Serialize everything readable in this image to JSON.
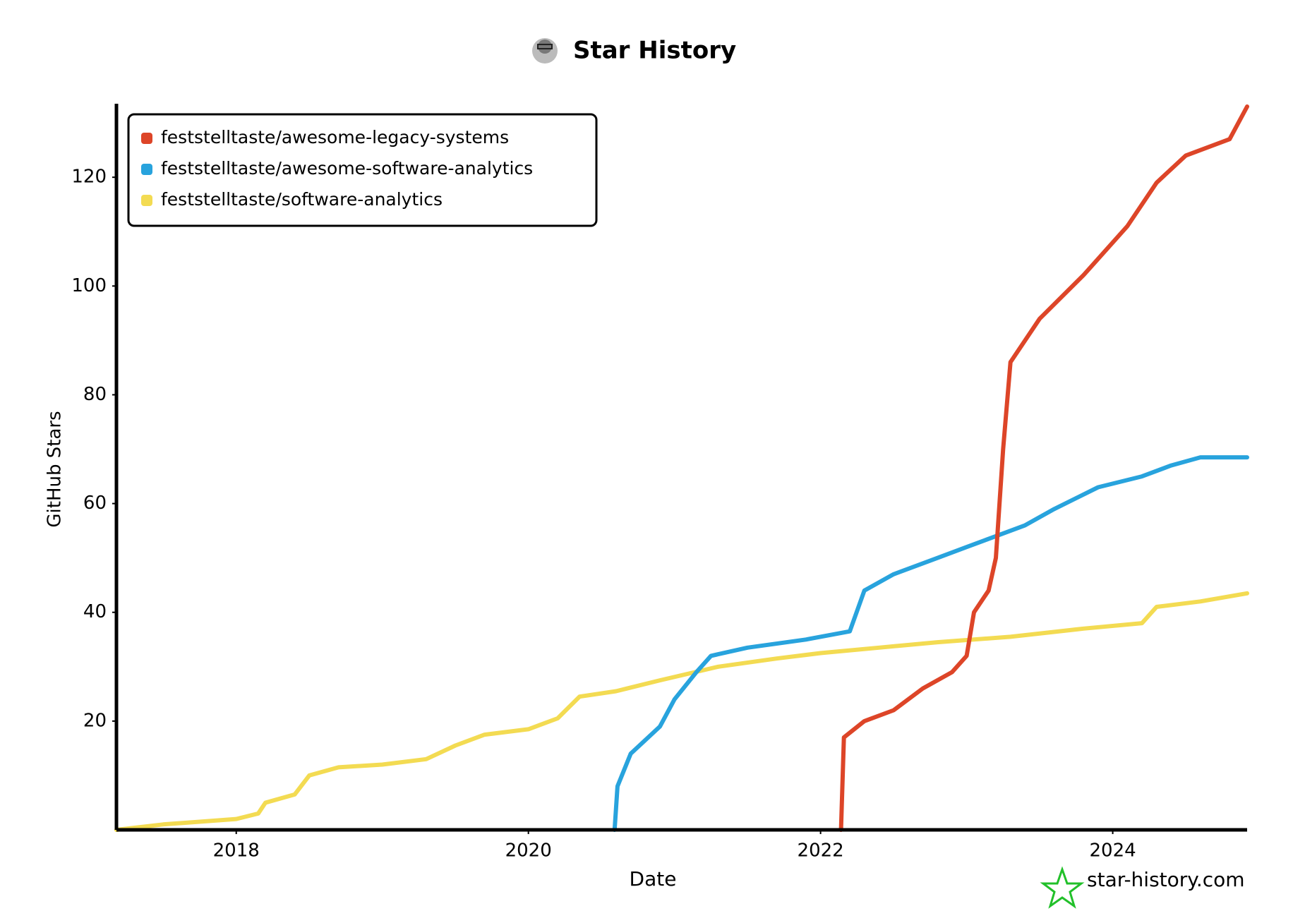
{
  "chart_data": {
    "type": "line",
    "title": "Star History",
    "x_label": "Date",
    "y_label": "GitHub Stars",
    "watermark": "star-history.com",
    "legend": "upper left",
    "xlim": [
      2017.18,
      2024.92
    ],
    "xticks": [
      2018,
      2020,
      2022,
      2024
    ],
    "ylim": [
      0,
      133
    ],
    "yticks": [
      20,
      40,
      60,
      80,
      100,
      120
    ],
    "series": [
      {
        "name": "feststelltaste/awesome-legacy-systems",
        "color": "#dd4528",
        "x": [
          2022.14,
          2022.16,
          2022.3,
          2022.5,
          2022.7,
          2022.9,
          2023.0,
          2023.05,
          2023.15,
          2023.2,
          2023.25,
          2023.3,
          2023.5,
          2023.8,
          2024.1,
          2024.3,
          2024.5,
          2024.8,
          2024.92
        ],
        "values": [
          0,
          17,
          20,
          22,
          26,
          29,
          32,
          40,
          44,
          50,
          70,
          86,
          94,
          102,
          111,
          119,
          124,
          127,
          133
        ]
      },
      {
        "name": "feststelltaste/awesome-software-analytics",
        "color": "#28a3dd",
        "x": [
          2020.59,
          2020.61,
          2020.7,
          2020.9,
          2021.0,
          2021.15,
          2021.25,
          2021.5,
          2021.9,
          2022.2,
          2022.3,
          2022.5,
          2022.8,
          2023.0,
          2023.2,
          2023.4,
          2023.6,
          2023.9,
          2024.2,
          2024.4,
          2024.6,
          2024.92
        ],
        "values": [
          0,
          8,
          14,
          19,
          24,
          29,
          32,
          33.5,
          35,
          36.5,
          44,
          47,
          50,
          52,
          54,
          56,
          59,
          63,
          65,
          67,
          68.5,
          68.5
        ]
      },
      {
        "name": "feststelltaste/software-analytics",
        "color": "#f3db52",
        "x": [
          2017.18,
          2017.5,
          2018.0,
          2018.15,
          2018.2,
          2018.4,
          2018.5,
          2018.7,
          2019.0,
          2019.3,
          2019.5,
          2019.7,
          2020.0,
          2020.2,
          2020.35,
          2020.6,
          2020.9,
          2021.3,
          2021.7,
          2022.0,
          2022.4,
          2022.8,
          2023.3,
          2023.8,
          2024.2,
          2024.3,
          2024.6,
          2024.92
        ],
        "values": [
          0,
          1,
          2,
          3,
          5,
          6.5,
          10,
          11.5,
          12,
          13,
          15.5,
          17.5,
          18.5,
          20.5,
          24.5,
          25.5,
          27.5,
          30,
          31.5,
          32.5,
          33.5,
          34.5,
          35.5,
          37,
          38,
          41,
          42,
          43.5
        ]
      }
    ]
  }
}
